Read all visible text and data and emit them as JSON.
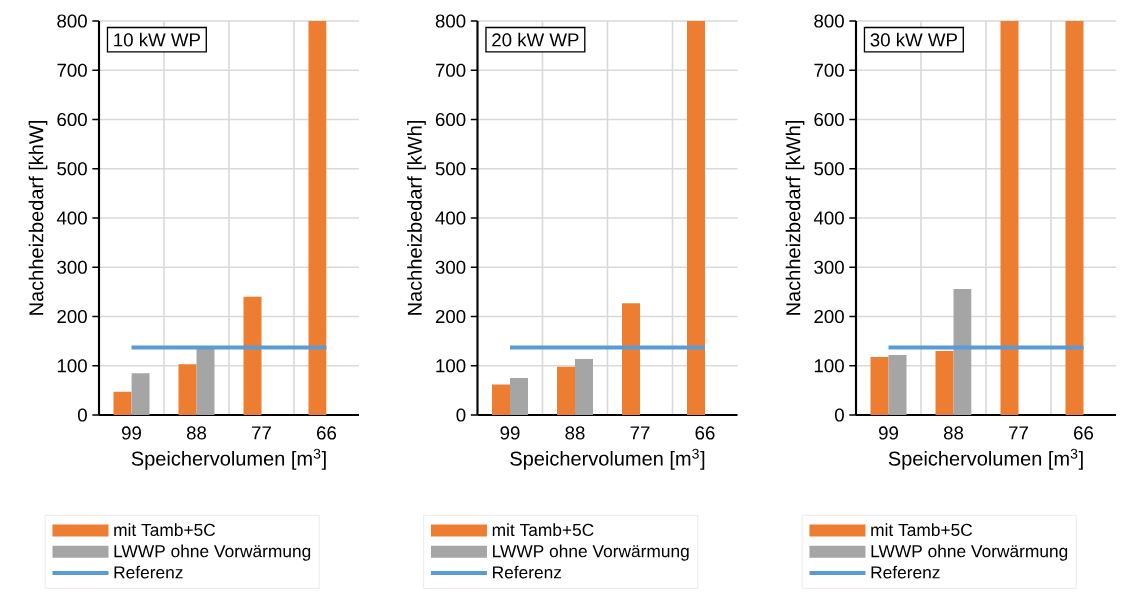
{
  "chart_data": [
    {
      "type": "bar",
      "title": "10 kW WP",
      "xlabel": "Speichervolumen [m$^{3}$]",
      "ylabel": "Nachheizbedarf [khW]",
      "categories": [
        "99",
        "88",
        "77",
        "66"
      ],
      "series": [
        {
          "name": "mit Tamb+5C",
          "color": "#ed7d31",
          "values": [
            47,
            103,
            240,
            800
          ]
        },
        {
          "name": "LWWP ohne Vorwärmung",
          "color": "#a5a5a5",
          "values": [
            85,
            137,
            null,
            null
          ]
        },
        {
          "name": "Referenz",
          "type": "line",
          "color": "#5b9bd5",
          "values": [
            137,
            137,
            137,
            137
          ]
        }
      ],
      "ylim": [
        0,
        800
      ],
      "yticks": [
        0,
        100,
        200,
        300,
        400,
        500,
        600,
        700,
        800
      ],
      "grid": true,
      "legend": "bottom"
    },
    {
      "type": "bar",
      "title": "20 kW WP",
      "xlabel": "Speichervolumen [m$^{3}$]",
      "ylabel": "Nachheizbedarf [kWh]",
      "categories": [
        "99",
        "88",
        "77",
        "66"
      ],
      "series": [
        {
          "name": "mit Tamb+5C",
          "color": "#ed7d31",
          "values": [
            62,
            98,
            227,
            800
          ]
        },
        {
          "name": "LWWP ohne Vorwärmung",
          "color": "#a5a5a5",
          "values": [
            75,
            114,
            null,
            null
          ]
        },
        {
          "name": "Referenz",
          "type": "line",
          "color": "#5b9bd5",
          "values": [
            137,
            137,
            137,
            137
          ]
        }
      ],
      "ylim": [
        0,
        800
      ],
      "yticks": [
        0,
        100,
        200,
        300,
        400,
        500,
        600,
        700,
        800
      ],
      "grid": true,
      "legend": "bottom"
    },
    {
      "type": "bar",
      "title": "30 kW WP",
      "xlabel": "Speichervolumen [m$^{3}$]",
      "ylabel": "Nachheizbedarf [kWh]",
      "categories": [
        "99",
        "88",
        "77",
        "66"
      ],
      "series": [
        {
          "name": "mit Tamb+5C",
          "color": "#ed7d31",
          "values": [
            118,
            130,
            800,
            800
          ]
        },
        {
          "name": "LWWP ohne Vorwärmung",
          "color": "#a5a5a5",
          "values": [
            122,
            256,
            null,
            null
          ]
        },
        {
          "name": "Referenz",
          "type": "line",
          "color": "#5b9bd5",
          "values": [
            137,
            137,
            137,
            137
          ]
        }
      ],
      "ylim": [
        0,
        800
      ],
      "yticks": [
        0,
        100,
        200,
        300,
        400,
        500,
        600,
        700,
        800
      ],
      "grid": true,
      "legend": "bottom"
    }
  ]
}
